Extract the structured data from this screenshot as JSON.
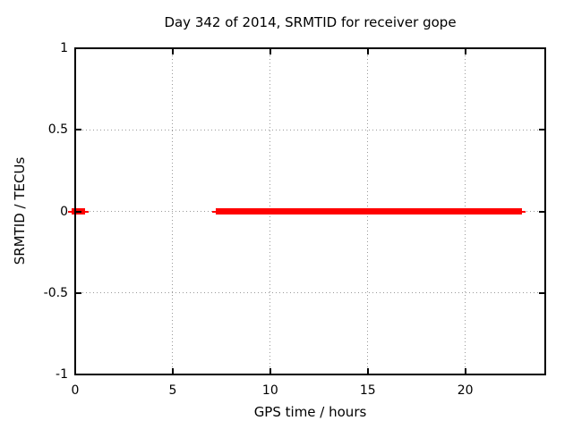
{
  "chart_data": {
    "type": "line",
    "title": "Day 342 of 2014, SRMTID for receiver gope",
    "xlabel": "GPS time / hours",
    "ylabel": "SRMTID / TECUs",
    "xlim": [
      0,
      24.1
    ],
    "ylim": [
      -1,
      1
    ],
    "grid": true,
    "legend": "none",
    "xticks": [
      {
        "value": 0,
        "label": "0"
      },
      {
        "value": 5,
        "label": "5"
      },
      {
        "value": 10,
        "label": "10"
      },
      {
        "value": 15,
        "label": "15"
      },
      {
        "value": 20,
        "label": "20"
      }
    ],
    "yticks": [
      {
        "value": 1,
        "label": "1"
      },
      {
        "value": 0.5,
        "label": "0.5"
      },
      {
        "value": 0,
        "label": "0"
      },
      {
        "value": -0.5,
        "label": "-0.5"
      },
      {
        "value": -1,
        "label": "-1"
      }
    ],
    "series": [
      {
        "name": "SRMTID",
        "color": "#ff0000",
        "style": "thick horizontal segments at constant value",
        "segments": [
          {
            "y": 0,
            "x_from": -0.2,
            "x_to": 0.5
          },
          {
            "y": 0,
            "x_from": 7.2,
            "x_to": 22.9
          }
        ]
      }
    ]
  },
  "colors": {
    "background": "#ffffff",
    "axis": "#000000",
    "text": "#000000",
    "grid": "#999999",
    "series": "#ff0000"
  }
}
